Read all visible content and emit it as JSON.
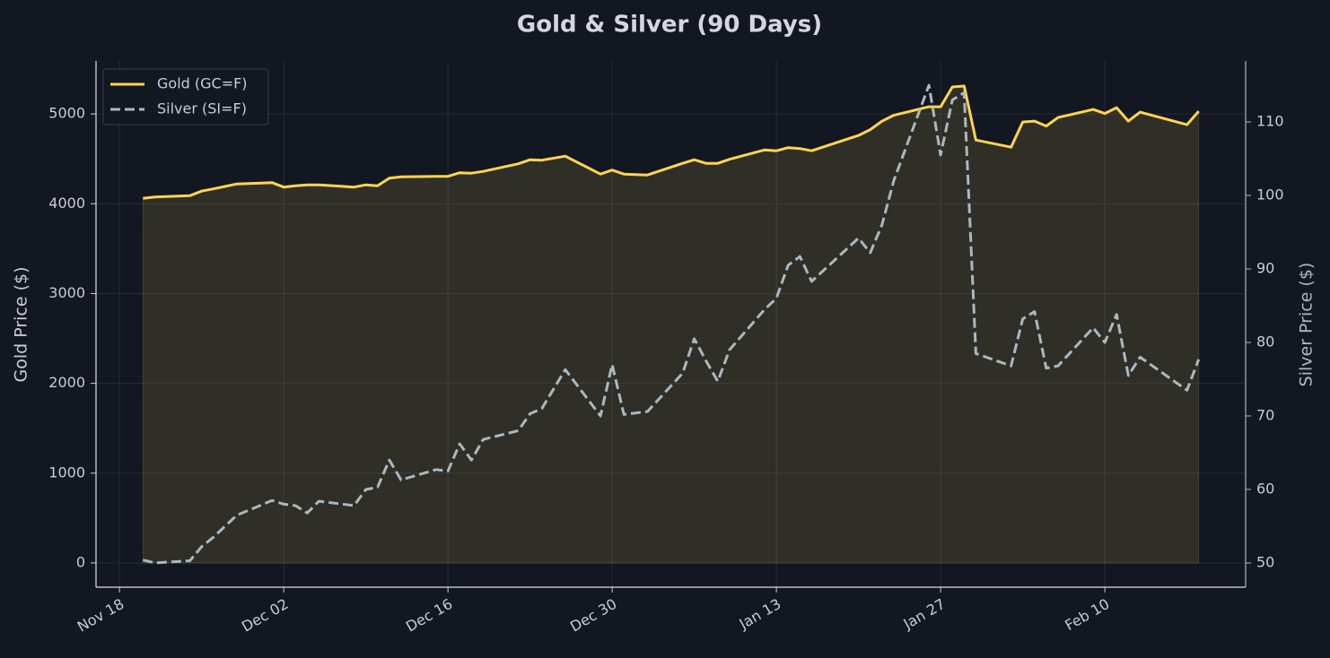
{
  "chart_data": {
    "type": "line",
    "title": "Gold & Silver (90 Days)",
    "y_label": "Gold Price ($)",
    "y2_label": "Silver Price ($)",
    "x": [
      "Nov 20",
      "Nov 21",
      "Nov 24",
      "Nov 25",
      "Nov 26",
      "Nov 28",
      "Dec 01",
      "Dec 02",
      "Dec 03",
      "Dec 04",
      "Dec 05",
      "Dec 08",
      "Dec 09",
      "Dec 10",
      "Dec 11",
      "Dec 12",
      "Dec 15",
      "Dec 16",
      "Dec 17",
      "Dec 18",
      "Dec 19",
      "Dec 22",
      "Dec 23",
      "Dec 24",
      "Dec 26",
      "Dec 29",
      "Dec 30",
      "Dec 31",
      "Jan 02",
      "Jan 05",
      "Jan 06",
      "Jan 07",
      "Jan 08",
      "Jan 09",
      "Jan 12",
      "Jan 13",
      "Jan 14",
      "Jan 15",
      "Jan 16",
      "Jan 20",
      "Jan 21",
      "Jan 22",
      "Jan 23",
      "Jan 26",
      "Jan 27",
      "Jan 28",
      "Jan 29",
      "Jan 30",
      "Feb 02",
      "Feb 03",
      "Feb 04",
      "Feb 05",
      "Feb 06",
      "Feb 09",
      "Feb 10",
      "Feb 11",
      "Feb 12",
      "Feb 13",
      "Feb 17",
      "Feb 18"
    ],
    "series": [
      {
        "name": "Gold (GC=F)",
        "color": "#ffd54f",
        "axis": "y",
        "dashed": false,
        "fill": true,
        "values": [
          4060,
          4075,
          4090,
          4140,
          4165,
          4220,
          4235,
          4185,
          4200,
          4210,
          4210,
          4185,
          4210,
          4200,
          4285,
          4300,
          4305,
          4305,
          4345,
          4340,
          4360,
          4445,
          4490,
          4485,
          4530,
          4330,
          4375,
          4330,
          4320,
          4450,
          4490,
          4450,
          4450,
          4495,
          4600,
          4590,
          4625,
          4615,
          4590,
          4760,
          4825,
          4920,
          4985,
          5080,
          5080,
          5300,
          5310,
          4710,
          4630,
          4910,
          4920,
          4865,
          4960,
          5050,
          5005,
          5070,
          4920,
          5020,
          4880,
          5030
        ]
      },
      {
        "name": "Silver (SI=F)",
        "color": "#a9b9c0",
        "axis": "y2",
        "dashed": true,
        "fill": false,
        "values": [
          50.4,
          50.0,
          50.3,
          52.2,
          53.5,
          56.5,
          58.5,
          58.0,
          57.8,
          56.8,
          58.4,
          57.8,
          60.0,
          60.3,
          64.0,
          61.3,
          62.7,
          62.5,
          66.2,
          64.0,
          66.8,
          68.0,
          70.3,
          71.0,
          76.3,
          70.0,
          77.0,
          70.2,
          70.6,
          75.8,
          80.5,
          77.5,
          74.7,
          79.0,
          84.5,
          86.0,
          90.5,
          91.7,
          88.3,
          94.2,
          92.2,
          96.0,
          102.0,
          115.0,
          105.5,
          113.0,
          114.0,
          78.5,
          76.8,
          83.2,
          84.2,
          76.5,
          76.8,
          82.0,
          80.0,
          83.8,
          75.5,
          78.0,
          73.5,
          77.7
        ]
      }
    ],
    "xlim": [
      "Nov 16",
      "Feb 22"
    ],
    "xticks": [
      "Nov 18",
      "Dec 02",
      "Dec 16",
      "Dec 30",
      "Jan 13",
      "Jan 27",
      "Feb 10"
    ],
    "ylim": [
      -270,
      5590
    ],
    "yticks": [
      0,
      1000,
      2000,
      3000,
      4000,
      5000
    ],
    "y2lim": [
      46.7,
      118.3
    ],
    "y2ticks": [
      50,
      60,
      70,
      80,
      90,
      100,
      110
    ],
    "grid": true,
    "legend": "upper left"
  }
}
